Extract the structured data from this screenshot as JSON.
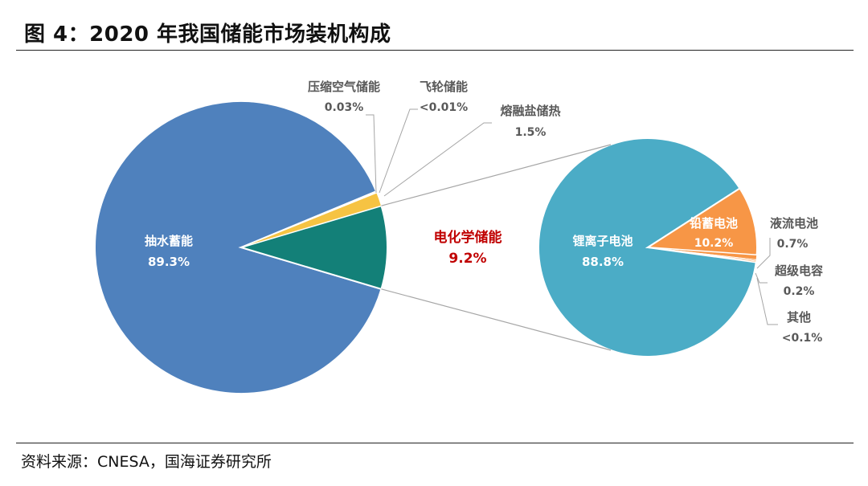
{
  "title": "图 4：2020 年我国储能市场装机构成",
  "source": "资料来源：CNESA，国海证券研究所",
  "chart_data": [
    {
      "type": "pie",
      "name": "main",
      "slices": [
        {
          "label": "抽水蓄能",
          "value_label": "89.3%",
          "value": 89.3,
          "color": "#4f81bd",
          "label_color": "#ffffff"
        },
        {
          "label": "电化学储能",
          "value_label": "9.2%",
          "value": 9.2,
          "color": "#138078",
          "label_color": "#c00000"
        },
        {
          "label": "熔融盐储热",
          "value_label": "1.5%",
          "value": 1.5,
          "color": "#f6c343",
          "label_color": "#595959"
        },
        {
          "label": "飞轮储能",
          "value_label": "<0.01%",
          "value": 0.01,
          "color": "#f6c343",
          "label_color": "#595959"
        },
        {
          "label": "压缩空气储能",
          "value_label": "0.03%",
          "value": 0.03,
          "color": "#f6c343",
          "label_color": "#595959"
        }
      ]
    },
    {
      "type": "pie",
      "name": "electrochemical-breakdown",
      "slices": [
        {
          "label": "锂离子电池",
          "value_label": "88.8%",
          "value": 88.8,
          "color": "#4bacc6",
          "label_color": "#ffffff"
        },
        {
          "label": "铅蓄电池",
          "value_label": "10.2%",
          "value": 10.2,
          "color": "#f79646",
          "label_color": "#ffffff"
        },
        {
          "label": "液流电池",
          "value_label": "0.7%",
          "value": 0.7,
          "color": "#f79646",
          "label_color": "#595959"
        },
        {
          "label": "超级电容",
          "value_label": "0.2%",
          "value": 0.2,
          "color": "#f79646",
          "label_color": "#595959"
        },
        {
          "label": "其他",
          "value_label": "<0.1%",
          "value": 0.1,
          "color": "#f79646",
          "label_color": "#595959"
        }
      ]
    }
  ]
}
